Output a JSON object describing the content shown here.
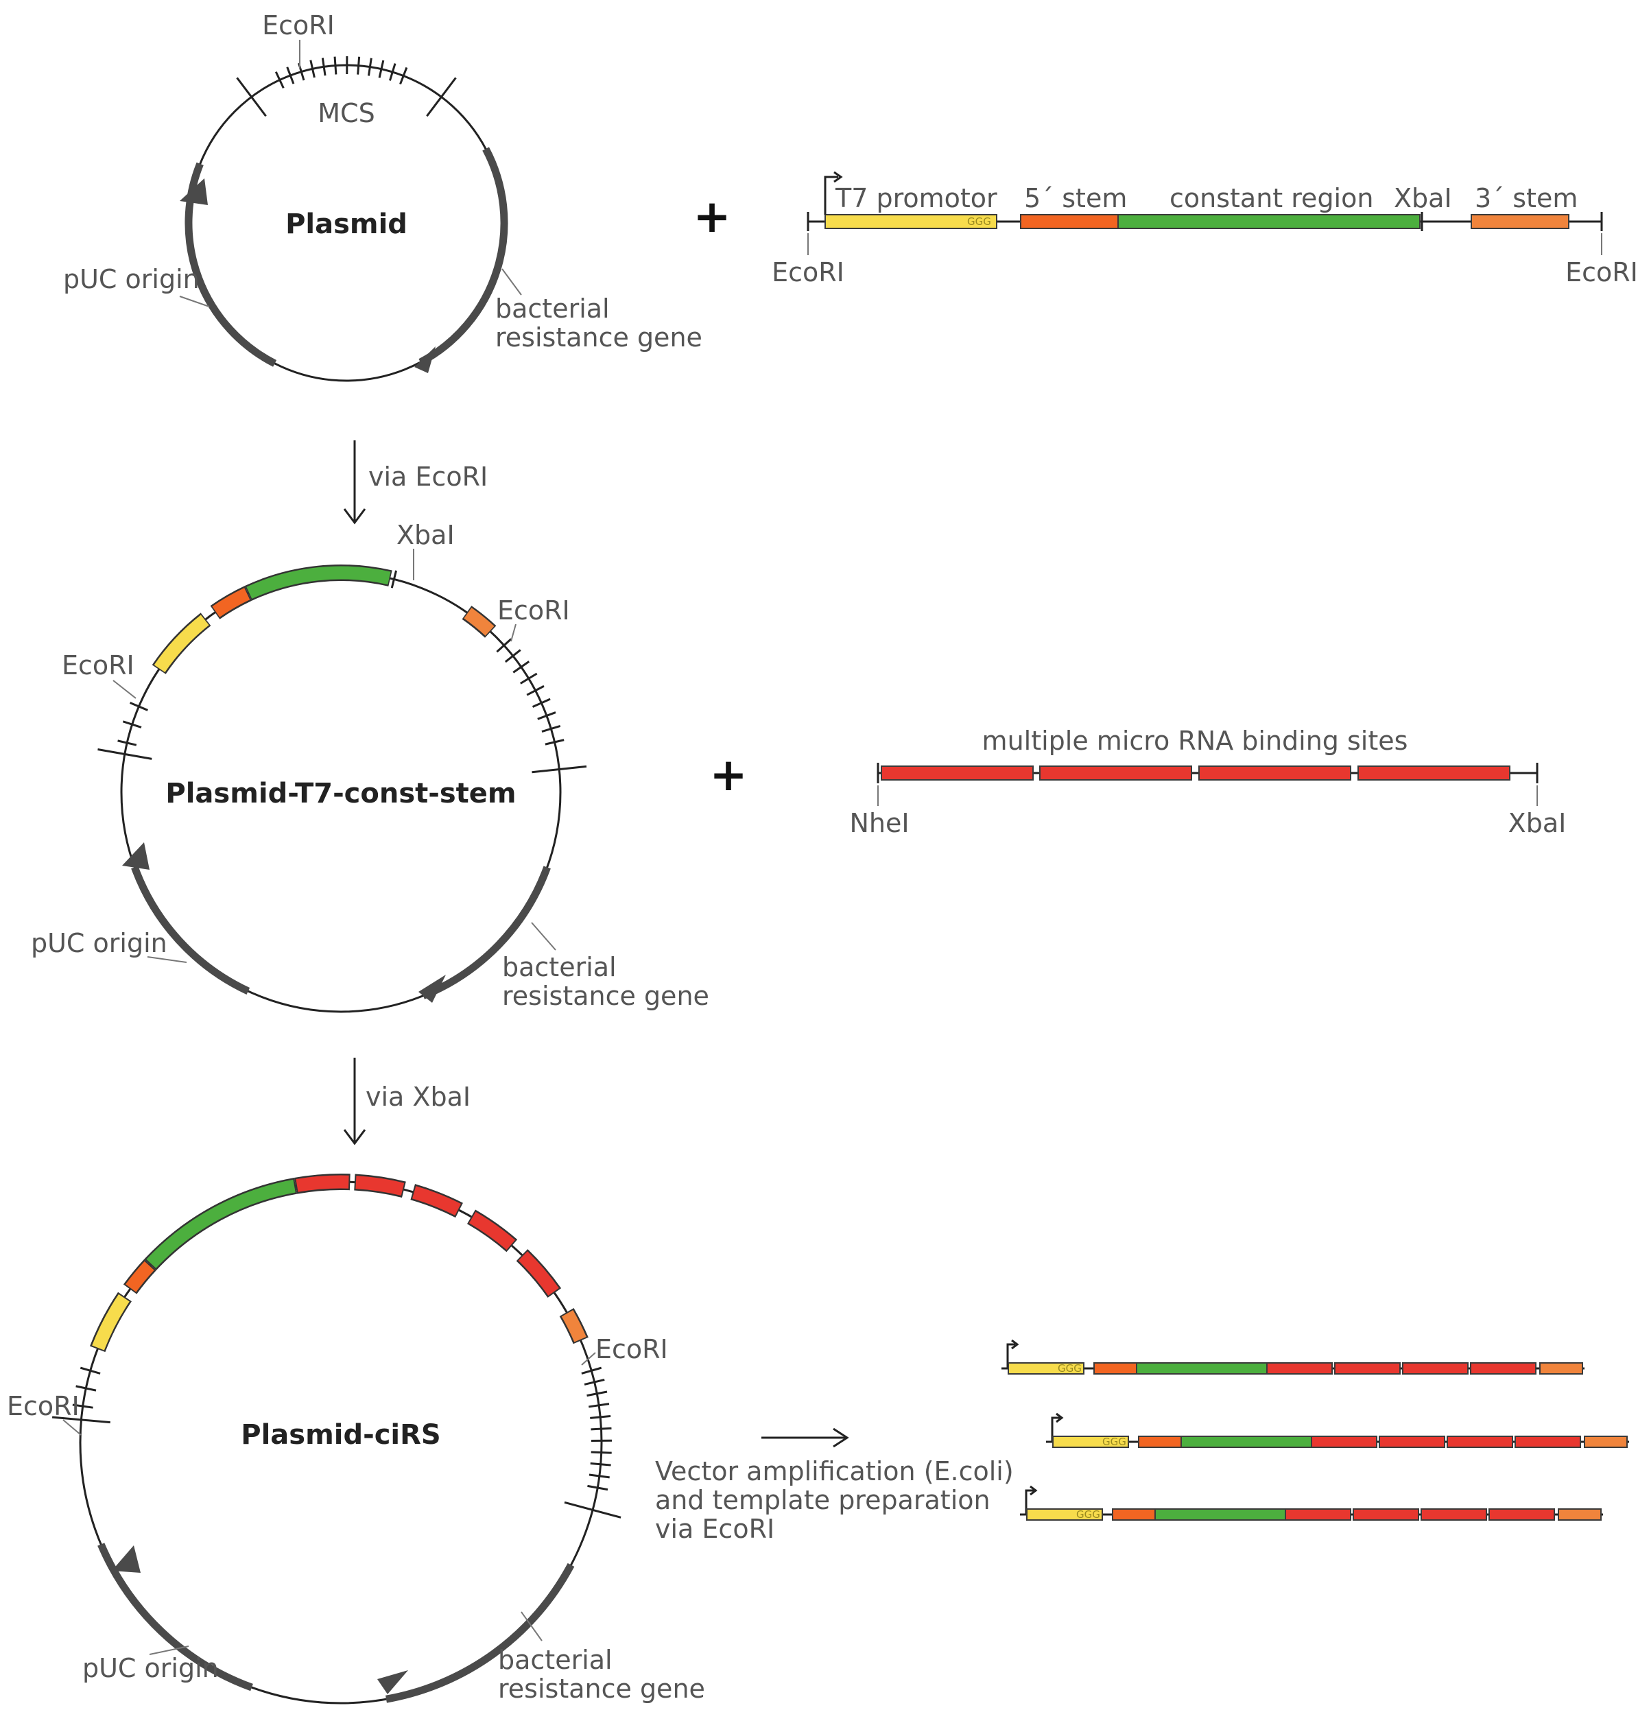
{
  "colors": {
    "t7": "#f7dc4c",
    "stem5": "#f26522",
    "constant": "#4caf3e",
    "stem3": "#f0843c",
    "mirna": "#e8372f",
    "backbone": "#222222",
    "gene_arc": "#4a4a4a"
  },
  "labels": {
    "ecori": "EcoRI",
    "xbai": "XbaI",
    "nhei": "NheI",
    "mcs": "MCS",
    "puc_origin": "pUC origin",
    "resistance_l1": "bacterial",
    "resistance_l2": "resistance gene",
    "ggg": "GGG",
    "plus": "+"
  },
  "plasmids": [
    {
      "title": "Plasmid"
    },
    {
      "title": "Plasmid-T7-const-stem"
    },
    {
      "title": "Plasmid-ciRS"
    }
  ],
  "steps": [
    {
      "label": "via EcoRI"
    },
    {
      "label": "via XbaI"
    }
  ],
  "insert1": {
    "t7": "T7 promotor",
    "stem5": "5´ stem",
    "constant": "constant region",
    "xbai": "XbaI",
    "stem3": "3´ stem"
  },
  "insert2": {
    "title": "multiple micro RNA binding sites"
  },
  "final_step": {
    "line1": "Vector amplification (E.coli)",
    "line2": "and template preparation",
    "line3": "via EcoRI"
  }
}
